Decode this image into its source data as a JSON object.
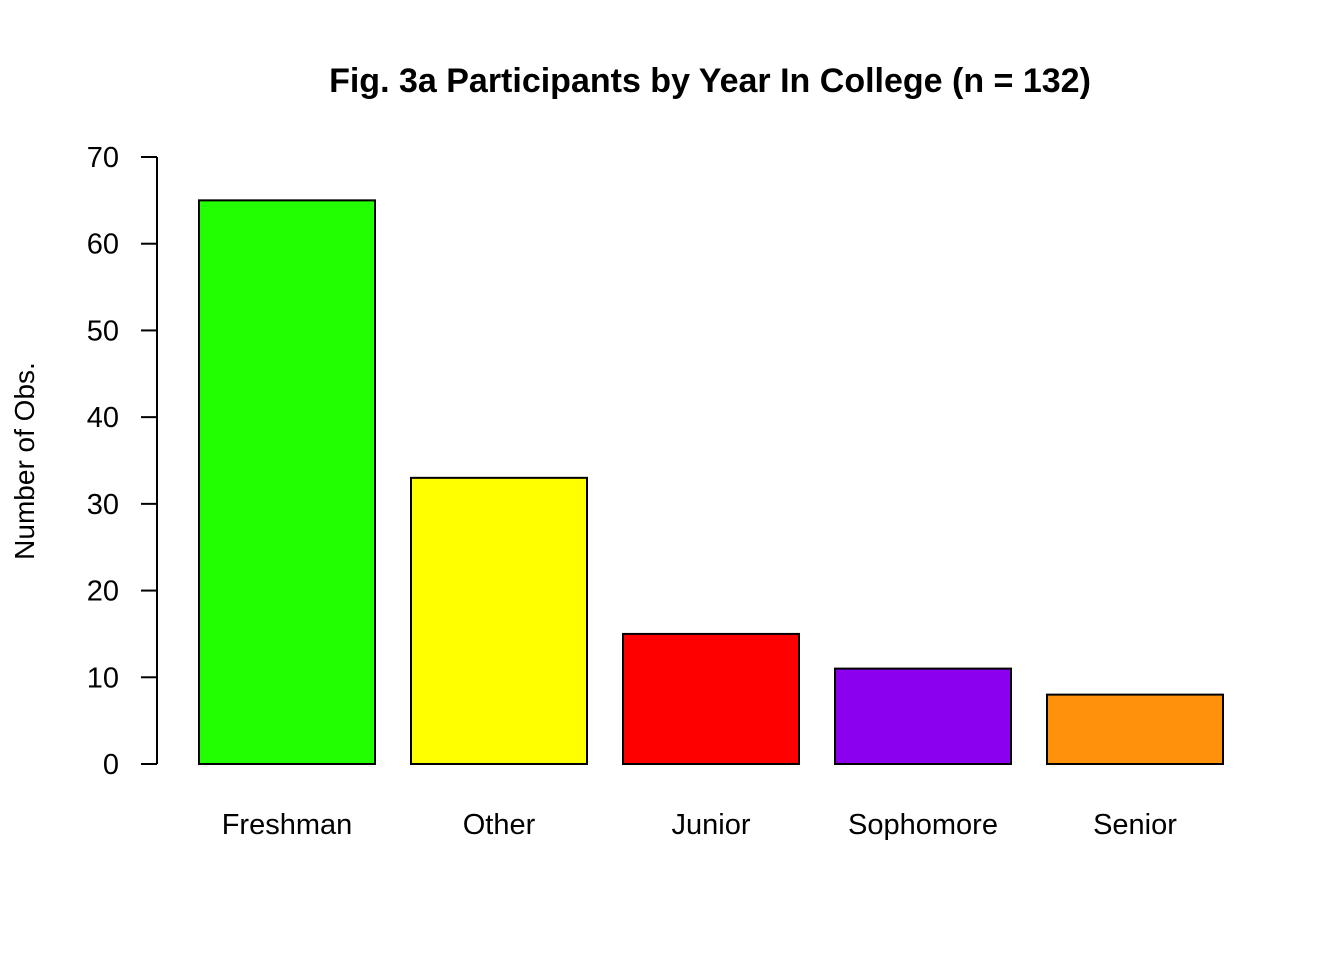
{
  "chart_data": {
    "type": "bar",
    "title": "Fig. 3a Participants by Year In College (n = 132)",
    "xlabel": "",
    "ylabel": "Number of Obs.",
    "categories": [
      "Freshman",
      "Other",
      "Junior",
      "Sophomore",
      "Senior"
    ],
    "values": [
      65,
      33,
      15,
      11,
      8
    ],
    "colors": [
      "#22ff00",
      "#ffff00",
      "#ff0000",
      "#8b00ee",
      "#ff920a"
    ],
    "bar_border_color": "#000000",
    "ylim": [
      0,
      70
    ],
    "yticks": [
      0,
      10,
      20,
      30,
      40,
      50,
      60,
      70
    ],
    "grid": false,
    "legend": "none"
  }
}
